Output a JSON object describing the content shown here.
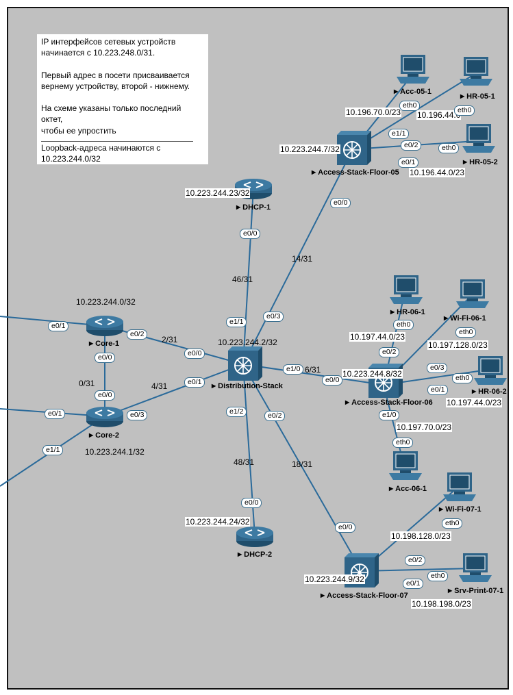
{
  "note": {
    "line1": "IP интерфейсов сетевых устройств",
    "line2": "начинается с 10.223.248.0/31.",
    "line3": "Первый адрес в посети присваивается",
    "line4": "вернему устройству, второй - нижнему.",
    "line5": "На схеме указаны только последний октет,",
    "line6": "чтобы ее упростить",
    "line7": "Loopback-адреса начинаются с",
    "line8": "10.223.244.0/32"
  },
  "devices": {
    "core1": {
      "name": "Core-1",
      "loopback": "10.223.244.0/32",
      "type": "router-icon"
    },
    "core2": {
      "name": "Core-2",
      "loopback": "10.223.244.1/32",
      "type": "router-icon"
    },
    "dist": {
      "name": "Distribution-Stack",
      "loopback": "10.223.244.2/32",
      "type": "multilayer-switch-icon"
    },
    "dhcp1": {
      "name": "DHCP-1",
      "loopback": "10.223.244.23/32",
      "type": "router-icon"
    },
    "dhcp2": {
      "name": "DHCP-2",
      "loopback": "10.223.244.24/32",
      "type": "router-icon"
    },
    "as05": {
      "name": "Access-Stack-Floor-05",
      "loopback": "10.223.244.7/32",
      "type": "multilayer-switch-icon"
    },
    "as06": {
      "name": "Access-Stack-Floor-06",
      "loopback": "10.223.244.8/32",
      "type": "multilayer-switch-icon"
    },
    "as07": {
      "name": "Access-Stack-Floor-07",
      "loopback": "10.223.244.9/32",
      "type": "multilayer-switch-icon"
    },
    "acc051": {
      "name": "Acc-05-1",
      "type": "pc-icon"
    },
    "hr051": {
      "name": "HR-05-1",
      "type": "pc-icon"
    },
    "hr052": {
      "name": "HR-05-2",
      "type": "pc-icon"
    },
    "hr061": {
      "name": "HR-06-1",
      "type": "pc-icon"
    },
    "wifi061": {
      "name": "Wi-Fi-06-1",
      "type": "pc-icon"
    },
    "hr062": {
      "name": "HR-06-2",
      "type": "pc-icon"
    },
    "acc061": {
      "name": "Acc-06-1",
      "type": "pc-icon"
    },
    "wifi071": {
      "name": "Wi-Fi-07-1",
      "type": "pc-icon"
    },
    "srvprint": {
      "name": "Srv-Print-07-1",
      "type": "pc-icon"
    }
  },
  "subnets": {
    "acc05": "10.196.70.0/23",
    "hr05a": "10.196.44.0",
    "hr05b": "10.196.44.0/23",
    "hr06a": "10.197.44.0/23",
    "wifi06": "10.197.128.0/23",
    "hr06b": "10.197.44.0/23",
    "acc06": "10.197.70.0/23",
    "wifi07": "10.198.128.0/23",
    "srv07": "10.198.198.0/23"
  },
  "links": {
    "core1_dist": "2/31",
    "core2_dist": "4/31",
    "core1_core2": "0/31",
    "dist_dhcp1": "46/31",
    "dist_as05": "14/31",
    "dist_as06": "6/31",
    "dist_dhcp2": "48/31",
    "dist_as07": "18/31"
  },
  "ports": {
    "core1_e01": "e0/1",
    "core1_e02": "e0/2",
    "core1_e00": "e0/0",
    "core2_e00": "e0/0",
    "core2_e01": "e0/1",
    "core2_e03": "e0/3",
    "core2_e11": "e1/1",
    "dist_e00": "e0/0",
    "dist_e01": "e0/1",
    "dist_e11": "e1/1",
    "dist_e03": "e0/3",
    "dist_e10": "e1/0",
    "dist_e12": "e1/2",
    "dist_e02": "e0/2",
    "dhcp1_e00": "e0/0",
    "dhcp2_e00": "e0/0",
    "as05_e00": "e0/0",
    "as05_e11": "e1/1",
    "as05_e02": "e0/2",
    "as05_e01": "e0/1",
    "as06_e00": "e0/0",
    "as06_e02": "e0/2",
    "as06_e10": "e1/0",
    "as06_e03": "e0/3",
    "as06_e01": "e0/1",
    "as07_e00": "e0/0",
    "as07_e02": "e0/2",
    "as07_e01": "e0/1",
    "acc051_eth0": "eth0",
    "hr051_eth0": "eth0",
    "hr052_eth0": "eth0",
    "hr061_eth0": "eth0",
    "wifi061_eth0": "eth0",
    "hr062_eth0": "eth0",
    "acc061_eth0": "eth0",
    "wifi071_eth0": "eth0",
    "srvprint_eth0": "eth0"
  },
  "colors": {
    "link": "#2a6a9a",
    "device": "#2f6488",
    "canvas": "#c0c0c0"
  }
}
